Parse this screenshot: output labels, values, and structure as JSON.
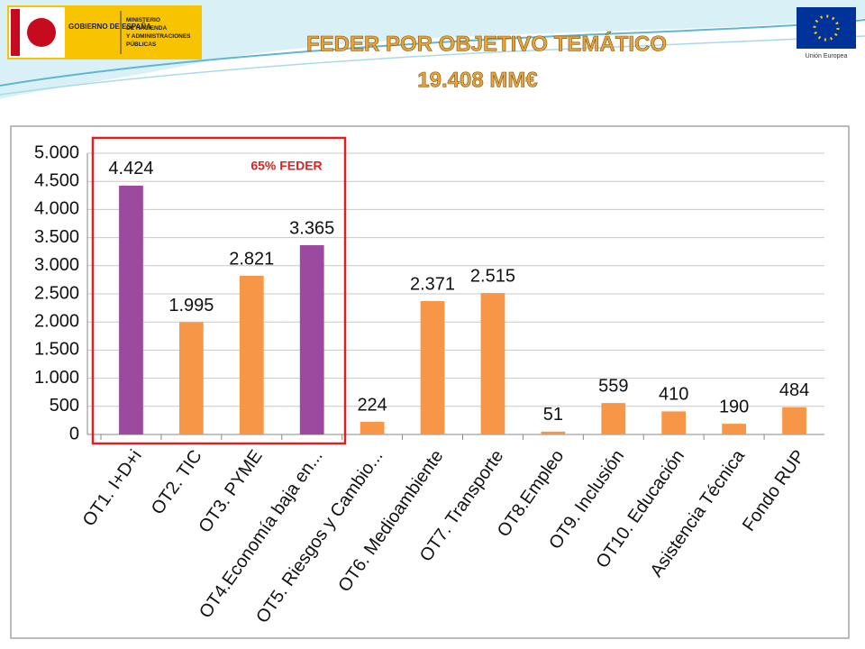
{
  "header": {
    "gov": "GOBIERNO DE ESPAÑA",
    "ministry": [
      "MINISTERIO",
      "DE HACIENDA",
      "Y ADMINISTRACIONES",
      "PÚBLICAS"
    ],
    "eu": "Unión Europea"
  },
  "chart_data": {
    "type": "bar",
    "title": "FEDER POR OBJETIVO TEMÁTICO",
    "subtitle": "19.408 MM€",
    "annotation": "65% FEDER",
    "categories": [
      "OT1. I+D+i",
      "OT2. TIC",
      "OT3. PYME",
      "OT4.Economía baja en...",
      "OT5. Riesgos y Cambio...",
      "OT6. Medioambiente",
      "OT7. Transporte",
      "OT8.Empleo",
      "OT9. Inclusión",
      "OT10. Educación",
      "Asistencia Técnica",
      "Fondo RUP"
    ],
    "values": [
      4424,
      1995,
      2821,
      3365,
      224,
      2371,
      2515,
      51,
      559,
      410,
      190,
      484
    ],
    "value_labels": [
      "4.424",
      "1.995",
      "2.821",
      "3.365",
      "224",
      "2.371",
      "2.515",
      "51",
      "559",
      "410",
      "190",
      "484"
    ],
    "colors": [
      "#9b4a9f",
      "#f79646",
      "#f79646",
      "#9b4a9f",
      "#f79646",
      "#f79646",
      "#f79646",
      "#f79646",
      "#f79646",
      "#f79646",
      "#f79646",
      "#f79646"
    ],
    "ylim": [
      0,
      5000
    ],
    "yticks": [
      0,
      500,
      {
        "value": 1000,
        "label": "1.000"
      },
      {
        "value": 1500,
        "label": "1.500"
      },
      {
        "value": 2000,
        "label": "2.000"
      },
      {
        "value": 2500,
        "label": "2.500"
      },
      {
        "value": 3000,
        "label": "3.000"
      },
      {
        "value": 3500,
        "label": "3.500"
      },
      {
        "value": 4000,
        "label": "4.000"
      },
      {
        "value": 4500,
        "label": "4.500"
      },
      {
        "value": 5000,
        "label": "5.000"
      }
    ],
    "grid": true
  }
}
